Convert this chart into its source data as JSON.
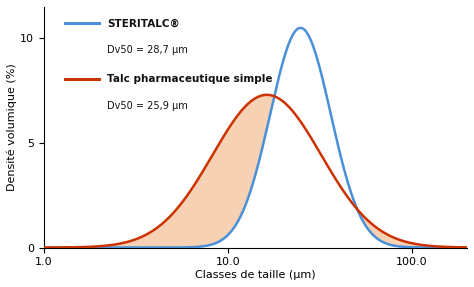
{
  "xlabel": "Classes de taille (µm)",
  "ylabel": "Densité volumique (%)",
  "xlim": [
    1.0,
    200.0
  ],
  "ylim": [
    0,
    11.5
  ],
  "yticks": [
    0,
    5,
    10
  ],
  "xticks": [
    1.0,
    10.0,
    100.0
  ],
  "blue_label_bold": "STERITALC®",
  "blue_label_sub": "Dv50 = 28,7 µm",
  "red_label_bold": "Talc pharmaceutique simple",
  "red_label_sub": "Dv50 = 25,9 µm",
  "blue_color": "#4a90d9",
  "red_color": "#cc3300",
  "fill_color": "#f5c6a0",
  "fill_alpha": 0.8,
  "blue_mu_log": 3.357,
  "blue_sigma": 0.38,
  "blue_peak": 10.5,
  "red_mu_log": 3.254,
  "red_sigma": 0.68,
  "red_peak": 7.3,
  "background_color": "#ffffff",
  "linewidth": 1.8,
  "text_color": "#111111",
  "legend_line_color_blue": "#4a90d9",
  "legend_line_color_red": "#cc3300"
}
